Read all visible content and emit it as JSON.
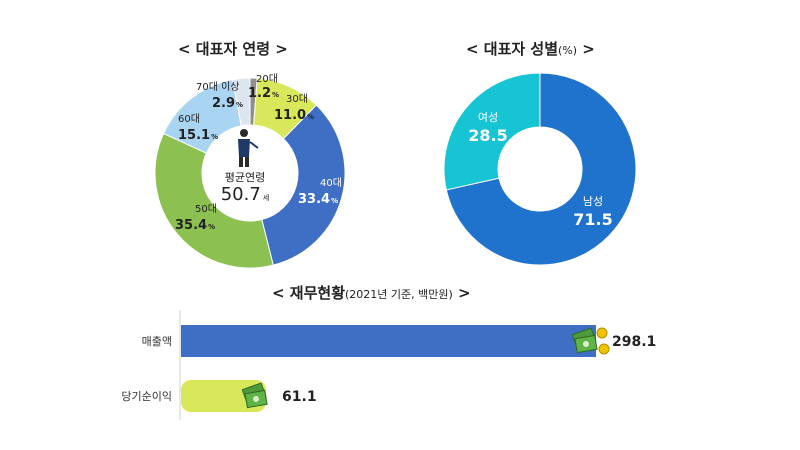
{
  "chart_data": [
    {
      "type": "pie",
      "title": "< 대표자 연령 >",
      "center_label": "평균연령",
      "center_value": "50.7",
      "center_unit": "세",
      "slices": [
        {
          "name": "20대",
          "value": 1.2,
          "value_label": "1.2",
          "color": "#8f8f8f"
        },
        {
          "name": "30대",
          "value": 11.0,
          "value_label": "11.0",
          "color": "#d8e85a"
        },
        {
          "name": "40대",
          "value": 33.4,
          "value_label": "33.4",
          "color": "#3f6fc4"
        },
        {
          "name": "50대",
          "value": 35.4,
          "value_label": "35.4",
          "color": "#8cc152"
        },
        {
          "name": "60대",
          "value": 15.1,
          "value_label": "15.1",
          "color": "#a9d4f2"
        },
        {
          "name": "70대 이상",
          "value": 2.9,
          "value_label": "2.9",
          "color": "#dde6ee"
        }
      ],
      "percent_sign": "%"
    },
    {
      "type": "pie",
      "title": "< 대표자 성별",
      "title_unit": "(%)",
      "title_end": " >",
      "slices": [
        {
          "name": "남성",
          "value": 71.5,
          "value_label": "71.5",
          "color": "#1f73cc"
        },
        {
          "name": "여성",
          "value": 28.5,
          "value_label": "28.5",
          "color": "#17c4d4"
        }
      ]
    },
    {
      "type": "bar",
      "orientation": "horizontal",
      "title": "< 재무현황",
      "title_unit": "(2021년 기준, 백만원)",
      "title_end": " >",
      "categories": [
        "매출액",
        "당기순이익"
      ],
      "values": [
        298.1,
        61.1
      ],
      "value_labels": [
        "298.1",
        "61.1"
      ],
      "colors": [
        "#3f6fc4",
        "#d8e85a"
      ],
      "xlim": [
        0,
        298.1
      ]
    }
  ]
}
